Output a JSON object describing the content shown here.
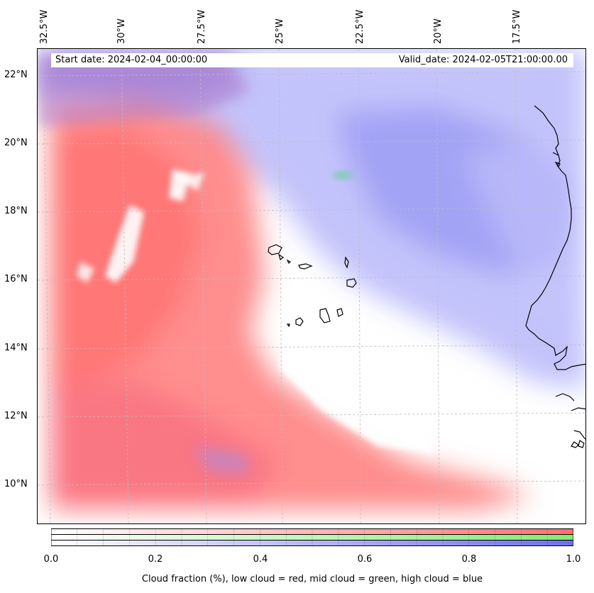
{
  "map": {
    "start_date": "Start date: 2024-02-04_00:00:00",
    "valid_date": "Valid_date: 2024-02-05T21:00:00.00",
    "lon_labels": [
      "32.5°W",
      "30°W",
      "27.5°W",
      "25°W",
      "22.5°W",
      "20°W",
      "17.5°W"
    ],
    "lat_labels": [
      "22°N",
      "20°N",
      "18°N",
      "16°N",
      "14°N",
      "12°N",
      "10°N"
    ],
    "region": "Cape Verde Islands and West African coast"
  },
  "colorbar": {
    "tick_labels": [
      "0.0",
      "0.2",
      "0.4",
      "0.6",
      "0.8",
      "1.0"
    ],
    "caption": "Cloud fraction (%), low cloud = red, mid cloud = green, high cloud = blue",
    "low_color": "#ff7a7a",
    "mid_color": "#8af07a",
    "high_color": "#7a7aef"
  },
  "cloud_colors": {
    "low": "#ff8080",
    "mid": "#70d0a0",
    "high": "#8080f0"
  }
}
